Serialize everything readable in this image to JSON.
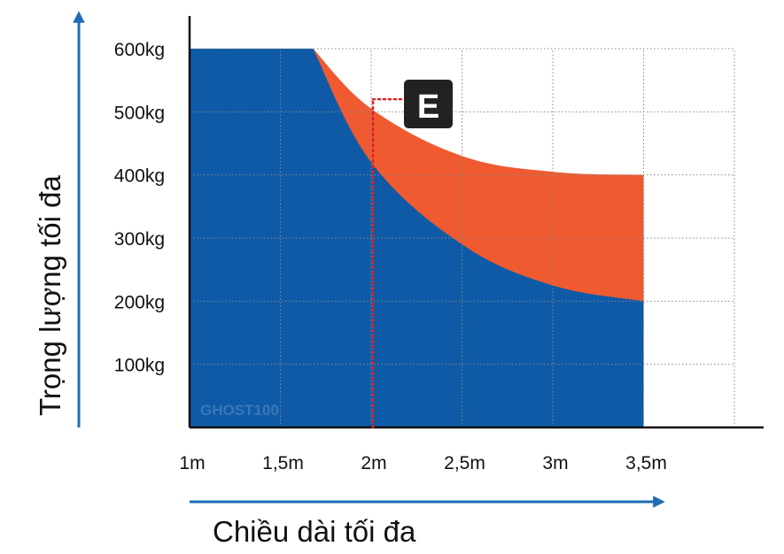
{
  "chart_data": {
    "type": "area",
    "x_unit_labels": [
      "1m",
      "1,5m",
      "2m",
      "2,5m",
      "3m",
      "3,5m"
    ],
    "x_values": [
      1,
      1.5,
      2,
      2.5,
      3,
      3.5
    ],
    "y_tick_labels": [
      "100kg",
      "200kg",
      "300kg",
      "400kg",
      "500kg",
      "600kg"
    ],
    "y_values": [
      100,
      200,
      300,
      400,
      500,
      600
    ],
    "xlabel": "Chiều dài tối đa",
    "ylabel": "Trọng lượng tối đa",
    "xlim": [
      1,
      4
    ],
    "ylim": [
      0,
      650
    ],
    "grid": true,
    "series": [
      {
        "color": "#f05a30",
        "x": [
          1,
          1.68,
          2,
          2.5,
          3,
          3.5
        ],
        "values": [
          600,
          600,
          505,
          430,
          405,
          400
        ]
      },
      {
        "color": "#0e5aa7",
        "x": [
          1,
          1.68,
          2,
          2.5,
          3,
          3.5
        ],
        "values": [
          600,
          600,
          420,
          290,
          225,
          200
        ]
      }
    ],
    "annotations": [
      {
        "label": "E",
        "x": 2,
        "y": 520,
        "color": "#e02020"
      }
    ],
    "watermark": "GHOST100",
    "colors": {
      "axis_arrow": "#1e6db5",
      "grid": "#888888",
      "orange": "#f05a30",
      "blue": "#0e5aa7"
    }
  }
}
